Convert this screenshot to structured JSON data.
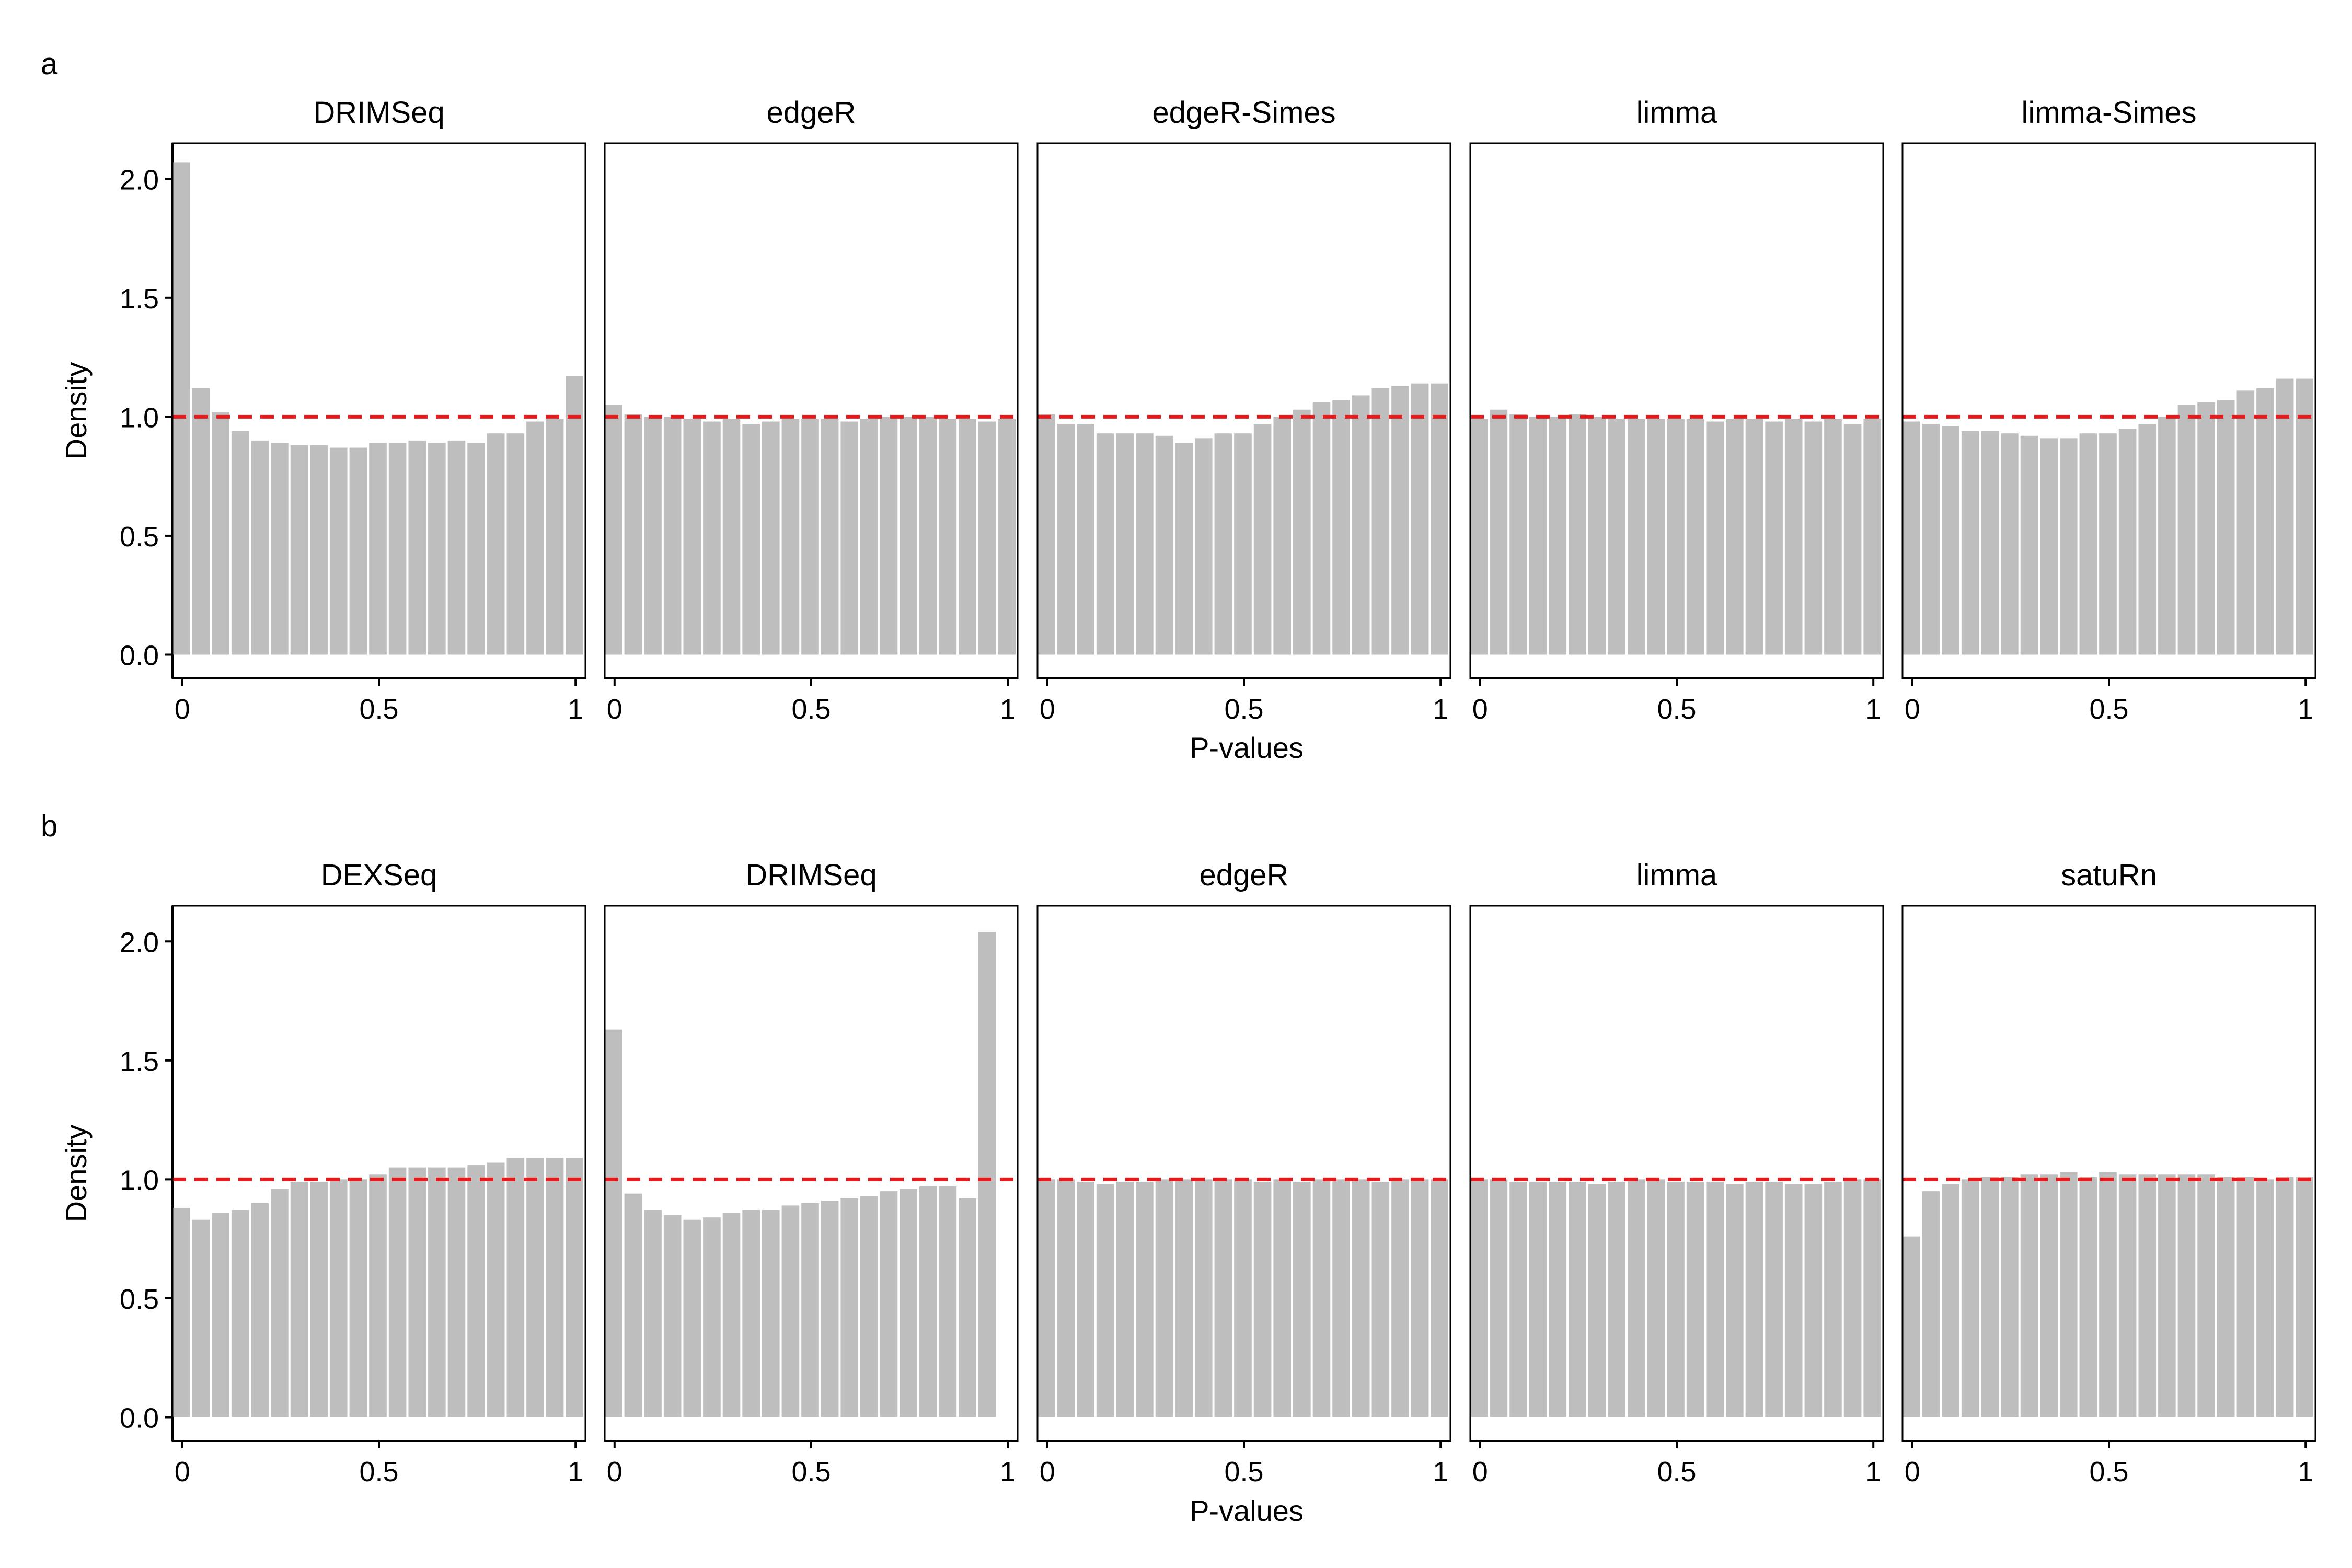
{
  "figure": {
    "reference_line": {
      "y": 1.0,
      "color": "#e41a1c",
      "style": "dashed"
    },
    "bar_color": "#bebebe",
    "panels": [
      {
        "label": "a",
        "xlabel": "P-values",
        "ylabel": "Density"
      },
      {
        "label": "b",
        "xlabel": "P-values",
        "ylabel": "Density"
      }
    ]
  },
  "chart_data": [
    {
      "type": "bar",
      "panel": "a",
      "title": "",
      "xlabel": "P-values",
      "ylabel": "Density",
      "xlim": [
        -0.025,
        1.025
      ],
      "ylim": [
        -0.1,
        2.15
      ],
      "xticks": [
        {
          "value": 0,
          "label": "0"
        },
        {
          "value": 0.5,
          "label": "0.5"
        },
        {
          "value": 1,
          "label": "1"
        }
      ],
      "yticks": [
        {
          "value": 0,
          "label": "0.0"
        },
        {
          "value": 0.5,
          "label": "0.5"
        },
        {
          "value": 1,
          "label": "1.0"
        },
        {
          "value": 1.5,
          "label": "1.5"
        },
        {
          "value": 2,
          "label": "2.0"
        }
      ],
      "bin_centers": [
        0.0,
        0.05,
        0.1,
        0.15,
        0.2,
        0.25,
        0.3,
        0.35,
        0.4,
        0.45,
        0.5,
        0.55,
        0.6,
        0.65,
        0.7,
        0.75,
        0.8,
        0.85,
        0.9,
        0.95,
        1.0
      ],
      "facets": [
        {
          "name": "DRIMSeq",
          "values": [
            2.07,
            1.12,
            1.02,
            0.94,
            0.9,
            0.89,
            0.88,
            0.88,
            0.87,
            0.87,
            0.89,
            0.89,
            0.9,
            0.89,
            0.9,
            0.89,
            0.93,
            0.93,
            0.98,
            0.99,
            1.17
          ]
        },
        {
          "name": "edgeR",
          "values": [
            1.05,
            1.01,
            1.0,
            1.0,
            0.99,
            0.98,
            0.99,
            0.97,
            0.98,
            0.99,
            0.99,
            0.99,
            0.98,
            0.99,
            1.0,
            1.0,
            1.0,
            0.99,
            0.99,
            0.98,
            0.99
          ]
        },
        {
          "name": "edgeR-Simes",
          "values": [
            1.01,
            0.97,
            0.97,
            0.93,
            0.93,
            0.93,
            0.92,
            0.89,
            0.91,
            0.93,
            0.93,
            0.97,
            1.0,
            1.03,
            1.06,
            1.07,
            1.09,
            1.12,
            1.13,
            1.14,
            1.14
          ]
        },
        {
          "name": "limma",
          "values": [
            0.99,
            1.03,
            1.01,
            1.0,
            1.0,
            1.01,
            1.0,
            0.99,
            0.99,
            0.99,
            0.99,
            0.99,
            0.98,
            0.99,
            0.99,
            0.98,
            0.99,
            0.98,
            0.99,
            0.97,
            0.99
          ]
        },
        {
          "name": "limma-Simes",
          "values": [
            0.98,
            0.97,
            0.96,
            0.94,
            0.94,
            0.93,
            0.92,
            0.91,
            0.91,
            0.93,
            0.93,
            0.95,
            0.97,
            1.0,
            1.05,
            1.06,
            1.07,
            1.11,
            1.12,
            1.16,
            1.16
          ]
        }
      ]
    },
    {
      "type": "bar",
      "panel": "b",
      "title": "",
      "xlabel": "P-values",
      "ylabel": "Density",
      "xlim": [
        -0.025,
        1.025
      ],
      "ylim": [
        -0.1,
        2.15
      ],
      "xticks": [
        {
          "value": 0,
          "label": "0"
        },
        {
          "value": 0.5,
          "label": "0.5"
        },
        {
          "value": 1,
          "label": "1"
        }
      ],
      "yticks": [
        {
          "value": 0,
          "label": "0.0"
        },
        {
          "value": 0.5,
          "label": "0.5"
        },
        {
          "value": 1,
          "label": "1.0"
        },
        {
          "value": 1.5,
          "label": "1.5"
        },
        {
          "value": 2,
          "label": "2.0"
        }
      ],
      "bin_centers": [
        0.0,
        0.05,
        0.1,
        0.15,
        0.2,
        0.25,
        0.3,
        0.35,
        0.4,
        0.45,
        0.5,
        0.55,
        0.6,
        0.65,
        0.7,
        0.75,
        0.8,
        0.85,
        0.9,
        0.95,
        1.0
      ],
      "facets": [
        {
          "name": "DEXSeq",
          "values": [
            0.88,
            0.83,
            0.86,
            0.87,
            0.9,
            0.96,
            0.99,
            0.99,
            1.0,
            1.0,
            1.02,
            1.05,
            1.05,
            1.05,
            1.05,
            1.06,
            1.07,
            1.09,
            1.09,
            1.09,
            1.09
          ]
        },
        {
          "name": "DRIMSeq",
          "values": [
            1.63,
            0.94,
            0.87,
            0.85,
            0.83,
            0.84,
            0.86,
            0.87,
            0.87,
            0.89,
            0.9,
            0.91,
            0.92,
            0.93,
            0.95,
            0.96,
            0.97,
            0.97,
            0.92,
            2.04,
            0.0
          ]
        },
        {
          "name": "edgeR",
          "values": [
            1.0,
            1.0,
            0.99,
            0.98,
            0.99,
            0.99,
            1.0,
            1.0,
            1.0,
            1.0,
            1.0,
            0.99,
            1.0,
            0.99,
            1.0,
            1.0,
            1.0,
            0.99,
            1.0,
            1.0,
            1.0
          ]
        },
        {
          "name": "limma",
          "values": [
            1.0,
            1.0,
            0.99,
            0.99,
            0.99,
            0.99,
            0.98,
            0.99,
            1.0,
            1.0,
            0.99,
            0.99,
            0.99,
            0.98,
            0.99,
            0.99,
            0.98,
            0.98,
            0.99,
            1.0,
            1.0
          ]
        },
        {
          "name": "satuRn",
          "values": [
            0.76,
            0.95,
            0.98,
            1.0,
            1.01,
            1.01,
            1.02,
            1.02,
            1.03,
            1.01,
            1.03,
            1.02,
            1.02,
            1.02,
            1.02,
            1.02,
            1.01,
            1.01,
            1.0,
            1.01,
            1.01
          ]
        }
      ]
    }
  ]
}
